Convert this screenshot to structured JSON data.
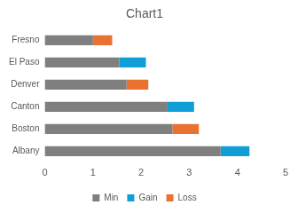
{
  "chart_data": {
    "type": "bar",
    "title": "Chart1",
    "orientation": "horizontal",
    "stacked": true,
    "categories": [
      "Albany",
      "Boston",
      "Canton",
      "Denver",
      "El Paso",
      "Fresno"
    ],
    "series": [
      {
        "name": "Min",
        "color": "#7f7f7f",
        "values": [
          3.65,
          2.65,
          2.55,
          1.7,
          1.55,
          1.0
        ]
      },
      {
        "name": "Gain",
        "color": "#0f9ed5",
        "values": [
          0.6,
          0,
          0.55,
          0,
          0.55,
          0
        ]
      },
      {
        "name": "Loss",
        "color": "#e97132",
        "values": [
          0,
          0.55,
          0,
          0.45,
          0,
          0.4
        ]
      }
    ],
    "xlim": [
      0,
      5
    ],
    "xticks": [
      0,
      1,
      2,
      3,
      4,
      5
    ],
    "grid": false,
    "legend": "bottom"
  }
}
